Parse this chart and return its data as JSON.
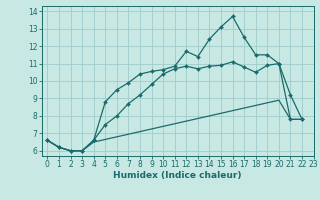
{
  "xlabel": "Humidex (Indice chaleur)",
  "xlim": [
    -0.5,
    23
  ],
  "ylim": [
    5.7,
    14.3
  ],
  "xticks": [
    0,
    1,
    2,
    3,
    4,
    5,
    6,
    7,
    8,
    9,
    10,
    11,
    12,
    13,
    14,
    15,
    16,
    17,
    18,
    19,
    20,
    21,
    22,
    23
  ],
  "yticks": [
    6,
    7,
    8,
    9,
    10,
    11,
    12,
    13,
    14
  ],
  "bg_color": "#c8e8e4",
  "grid_color": "#a0cccc",
  "line_color": "#1a6b6b",
  "curve1_x": [
    0,
    1,
    2,
    3,
    4,
    5,
    6,
    7,
    8,
    9,
    10,
    11,
    12,
    13,
    14,
    15,
    16,
    17,
    18,
    19,
    20,
    21,
    22
  ],
  "curve1_y": [
    6.6,
    6.2,
    6.0,
    6.0,
    6.5,
    6.65,
    6.8,
    6.95,
    7.1,
    7.25,
    7.4,
    7.55,
    7.7,
    7.85,
    8.0,
    8.15,
    8.3,
    8.45,
    8.6,
    8.75,
    8.9,
    7.8,
    7.8
  ],
  "curve2_x": [
    0,
    1,
    2,
    3,
    4,
    5,
    6,
    7,
    8,
    9,
    10,
    11,
    12,
    13,
    14,
    15,
    16,
    17,
    18,
    19,
    20,
    21,
    22
  ],
  "curve2_y": [
    6.6,
    6.2,
    6.0,
    6.0,
    6.6,
    8.8,
    9.5,
    9.9,
    10.4,
    10.55,
    10.65,
    10.85,
    11.7,
    11.4,
    12.4,
    13.1,
    13.7,
    12.5,
    11.5,
    11.5,
    11.0,
    9.2,
    7.8
  ],
  "curve3_x": [
    0,
    1,
    2,
    3,
    4,
    5,
    6,
    7,
    8,
    9,
    10,
    11,
    12,
    13,
    14,
    15,
    16,
    17,
    18,
    19,
    20,
    21,
    22
  ],
  "curve3_y": [
    6.6,
    6.2,
    6.0,
    6.0,
    6.6,
    7.5,
    8.0,
    8.7,
    9.2,
    9.8,
    10.4,
    10.7,
    10.85,
    10.7,
    10.85,
    10.9,
    11.1,
    10.8,
    10.5,
    10.9,
    11.0,
    7.8,
    7.8
  ]
}
